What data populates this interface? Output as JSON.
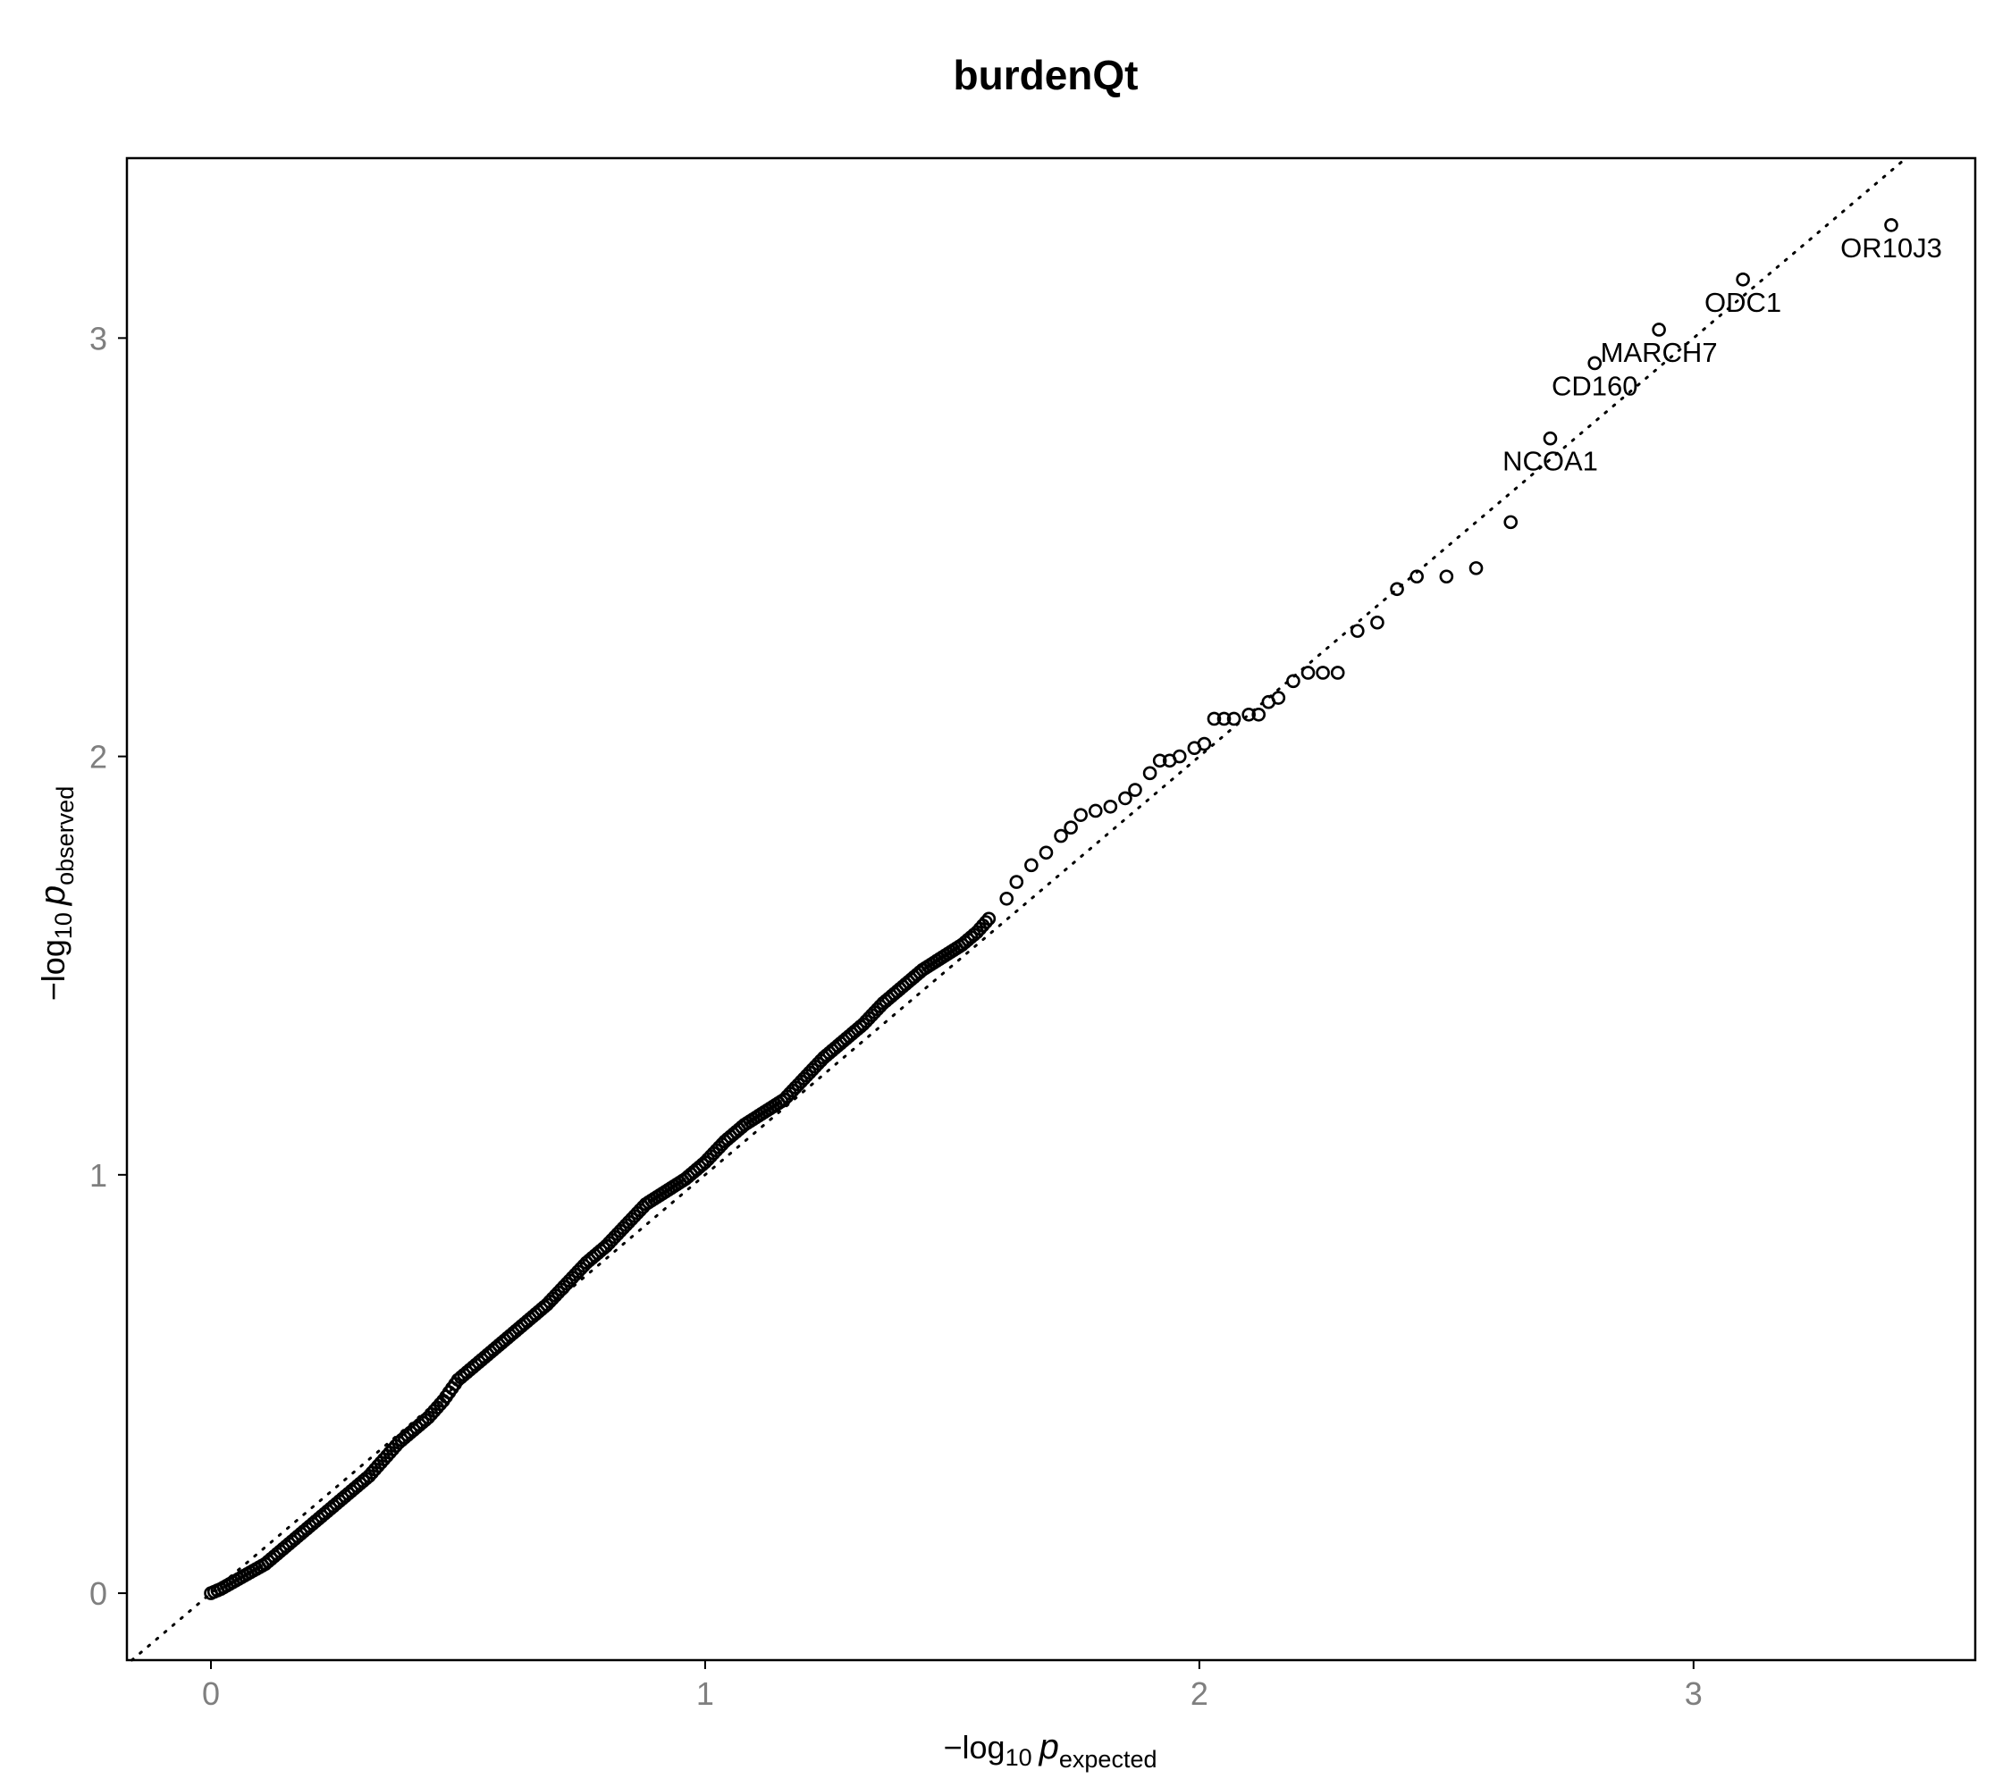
{
  "chart_data": {
    "type": "scatter",
    "title": "burdenQt",
    "xlabel": {
      "prefix": "−log",
      "base": "10",
      "var": "p",
      "subscript": "expected"
    },
    "ylabel": {
      "prefix": "−log",
      "base": "10",
      "var": "p",
      "subscript": "observed"
    },
    "xlim": [
      -0.17,
      3.57
    ],
    "ylim": [
      -0.16,
      3.43
    ],
    "x_ticks": [
      0,
      1,
      2,
      3
    ],
    "y_ticks": [
      0,
      1,
      2,
      3
    ],
    "x_tick_labels": [
      "0",
      "1",
      "2",
      "3"
    ],
    "y_tick_labels": [
      "0",
      "1",
      "2",
      "3"
    ],
    "grid": false,
    "reference_line": {
      "style": "dotted",
      "slope": 1,
      "intercept": 0
    },
    "points": [
      [
        0.0,
        0.0
      ],
      [
        0.02,
        0.01
      ],
      [
        0.05,
        0.03
      ],
      [
        0.08,
        0.05
      ],
      [
        0.11,
        0.07
      ],
      [
        0.14,
        0.1
      ],
      [
        0.17,
        0.13
      ],
      [
        0.2,
        0.16
      ],
      [
        0.23,
        0.19
      ],
      [
        0.26,
        0.22
      ],
      [
        0.29,
        0.25
      ],
      [
        0.32,
        0.28
      ],
      [
        0.35,
        0.32
      ],
      [
        0.38,
        0.36
      ],
      [
        0.41,
        0.39
      ],
      [
        0.44,
        0.42
      ],
      [
        0.47,
        0.46
      ],
      [
        0.5,
        0.51
      ],
      [
        0.53,
        0.54
      ],
      [
        0.56,
        0.57
      ],
      [
        0.6,
        0.61
      ],
      [
        0.64,
        0.65
      ],
      [
        0.68,
        0.69
      ],
      [
        0.72,
        0.74
      ],
      [
        0.76,
        0.79
      ],
      [
        0.8,
        0.83
      ],
      [
        0.84,
        0.88
      ],
      [
        0.88,
        0.93
      ],
      [
        0.92,
        0.96
      ],
      [
        0.96,
        0.99
      ],
      [
        1.0,
        1.03
      ],
      [
        1.04,
        1.08
      ],
      [
        1.08,
        1.12
      ],
      [
        1.12,
        1.15
      ],
      [
        1.16,
        1.18
      ],
      [
        1.2,
        1.23
      ],
      [
        1.24,
        1.28
      ],
      [
        1.28,
        1.32
      ],
      [
        1.32,
        1.36
      ],
      [
        1.36,
        1.41
      ],
      [
        1.4,
        1.45
      ],
      [
        1.44,
        1.49
      ],
      [
        1.48,
        1.52
      ],
      [
        1.52,
        1.55
      ],
      [
        1.55,
        1.58
      ],
      [
        1.58,
        1.62
      ],
      [
        1.61,
        1.66
      ],
      [
        1.63,
        1.7
      ],
      [
        1.66,
        1.74
      ],
      [
        1.69,
        1.77
      ],
      [
        1.72,
        1.81
      ],
      [
        1.74,
        1.83
      ],
      [
        1.76,
        1.86
      ],
      [
        1.79,
        1.87
      ],
      [
        1.82,
        1.88
      ],
      [
        1.85,
        1.9
      ],
      [
        1.87,
        1.92
      ],
      [
        1.9,
        1.96
      ],
      [
        1.92,
        1.99
      ],
      [
        1.94,
        1.99
      ],
      [
        1.96,
        2.0
      ],
      [
        1.99,
        2.02
      ],
      [
        2.01,
        2.03
      ],
      [
        2.03,
        2.09
      ],
      [
        2.05,
        2.09
      ],
      [
        2.07,
        2.09
      ],
      [
        2.1,
        2.1
      ],
      [
        2.12,
        2.1
      ],
      [
        2.14,
        2.13
      ],
      [
        2.16,
        2.14
      ],
      [
        2.19,
        2.18
      ],
      [
        2.22,
        2.2
      ],
      [
        2.25,
        2.2
      ],
      [
        2.28,
        2.2
      ],
      [
        2.32,
        2.3
      ],
      [
        2.36,
        2.32
      ],
      [
        2.4,
        2.4
      ],
      [
        2.44,
        2.43
      ],
      [
        2.5,
        2.43
      ],
      [
        2.56,
        2.45
      ],
      [
        2.63,
        2.56
      ],
      [
        2.71,
        2.76
      ],
      [
        2.8,
        2.94
      ],
      [
        2.93,
        3.02
      ],
      [
        3.1,
        3.14
      ],
      [
        3.4,
        3.27
      ]
    ],
    "labels": [
      {
        "text": "OR10J3",
        "x": 3.4,
        "y": 3.27
      },
      {
        "text": "ODC1",
        "x": 3.1,
        "y": 3.14
      },
      {
        "text": "MARCH7",
        "x": 2.93,
        "y": 3.02
      },
      {
        "text": "CD160",
        "x": 2.8,
        "y": 2.94
      },
      {
        "text": "NCOA1",
        "x": 2.71,
        "y": 2.76
      }
    ]
  }
}
